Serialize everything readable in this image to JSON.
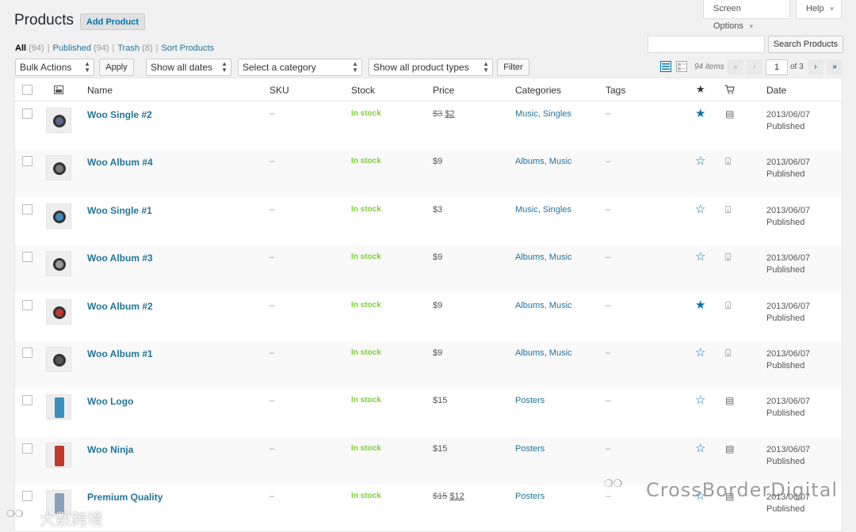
{
  "header": {
    "title": "Products",
    "add_button": "Add Product",
    "screen_options": "Screen Options",
    "help": "Help"
  },
  "views": [
    {
      "label": "All",
      "count": "(94)"
    },
    {
      "label": "Published",
      "count": "(94)"
    },
    {
      "label": "Trash",
      "count": "(8)"
    },
    {
      "label": "Sort Products",
      "count": ""
    }
  ],
  "search": {
    "value": "",
    "button": "Search Products"
  },
  "toolbar": {
    "bulk_actions": "Bulk Actions",
    "apply": "Apply",
    "dates": "Show all dates",
    "category": "Select a category",
    "product_types": "Show all product types",
    "filter": "Filter"
  },
  "pagination": {
    "items": "94 items",
    "first": "«",
    "prev": "‹",
    "current": "1",
    "of": "of 3",
    "next": "›",
    "last": "»"
  },
  "columns": {
    "name": "Name",
    "sku": "SKU",
    "stock": "Stock",
    "price": "Price",
    "categories": "Categories",
    "tags": "Tags",
    "date": "Date"
  },
  "products": [
    {
      "name": "Woo Single #2",
      "sku": "–",
      "stock": "In stock",
      "price_old": "$3",
      "price": "$2",
      "categories": "Music, Singles",
      "tags": "–",
      "featured": true,
      "type_icon": "virtual-icon",
      "date": "2013/06/07",
      "status": "Published",
      "thumb": "disc",
      "thumb_color": "#5a6a8a"
    },
    {
      "name": "Woo Album #4",
      "sku": "–",
      "stock": "In stock",
      "price_old": "",
      "price": "$9",
      "categories": "Albums, Music",
      "tags": "–",
      "featured": false,
      "type_icon": "downloadable-icon",
      "date": "2013/06/07",
      "status": "Published",
      "thumb": "disc",
      "thumb_color": "#777"
    },
    {
      "name": "Woo Single #1",
      "sku": "–",
      "stock": "In stock",
      "price_old": "",
      "price": "$3",
      "categories": "Music, Singles",
      "tags": "–",
      "featured": false,
      "type_icon": "downloadable-icon",
      "date": "2013/06/07",
      "status": "Published",
      "thumb": "disc",
      "thumb_color": "#3b8fc0"
    },
    {
      "name": "Woo Album #3",
      "sku": "–",
      "stock": "In stock",
      "price_old": "",
      "price": "$9",
      "categories": "Albums, Music",
      "tags": "–",
      "featured": false,
      "type_icon": "downloadable-icon",
      "date": "2013/06/07",
      "status": "Published",
      "thumb": "disc",
      "thumb_color": "#999"
    },
    {
      "name": "Woo Album #2",
      "sku": "–",
      "stock": "In stock",
      "price_old": "",
      "price": "$9",
      "categories": "Albums, Music",
      "tags": "–",
      "featured": true,
      "type_icon": "downloadable-icon",
      "date": "2013/06/07",
      "status": "Published",
      "thumb": "disc",
      "thumb_color": "#c0392b"
    },
    {
      "name": "Woo Album #1",
      "sku": "–",
      "stock": "In stock",
      "price_old": "",
      "price": "$9",
      "categories": "Albums, Music",
      "tags": "–",
      "featured": false,
      "type_icon": "downloadable-icon",
      "date": "2013/06/07",
      "status": "Published",
      "thumb": "disc",
      "thumb_color": "#555"
    },
    {
      "name": "Woo Logo",
      "sku": "–",
      "stock": "In stock",
      "price_old": "",
      "price": "$15",
      "categories": "Posters",
      "tags": "–",
      "featured": false,
      "type_icon": "virtual-icon",
      "date": "2013/06/07",
      "status": "Published",
      "thumb": "poster",
      "thumb_color": "#3b8fc0"
    },
    {
      "name": "Woo Ninja",
      "sku": "–",
      "stock": "In stock",
      "price_old": "",
      "price": "$15",
      "categories": "Posters",
      "tags": "–",
      "featured": false,
      "type_icon": "virtual-icon",
      "date": "2013/06/07",
      "status": "Published",
      "thumb": "poster",
      "thumb_color": "#c0392b"
    },
    {
      "name": "Premium Quality",
      "sku": "–",
      "stock": "In stock",
      "price_old": "$15",
      "price": "$12",
      "categories": "Posters",
      "tags": "–",
      "featured": false,
      "type_icon": "virtual-icon",
      "date": "2013/06/07",
      "status": "Published",
      "thumb": "poster",
      "thumb_color": "#8aa0b8"
    }
  ],
  "watermarks": {
    "right": "CrossBorderDigital",
    "left": "大数跨境"
  },
  "colors": {
    "link": "#21759b",
    "in_stock": "#7ad03a",
    "star": "#0073aa"
  }
}
